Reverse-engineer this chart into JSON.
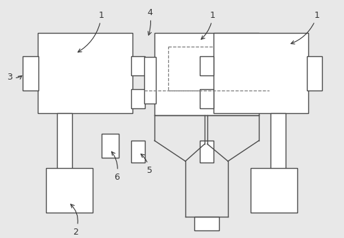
{
  "bg_color": "#e8e8e8",
  "line_color": "#4a4a4a",
  "dashed_color": "#7a7a7a",
  "label_color": "#333333",
  "fig_width": 5.01,
  "fig_height": 3.47,
  "dpi": 100
}
